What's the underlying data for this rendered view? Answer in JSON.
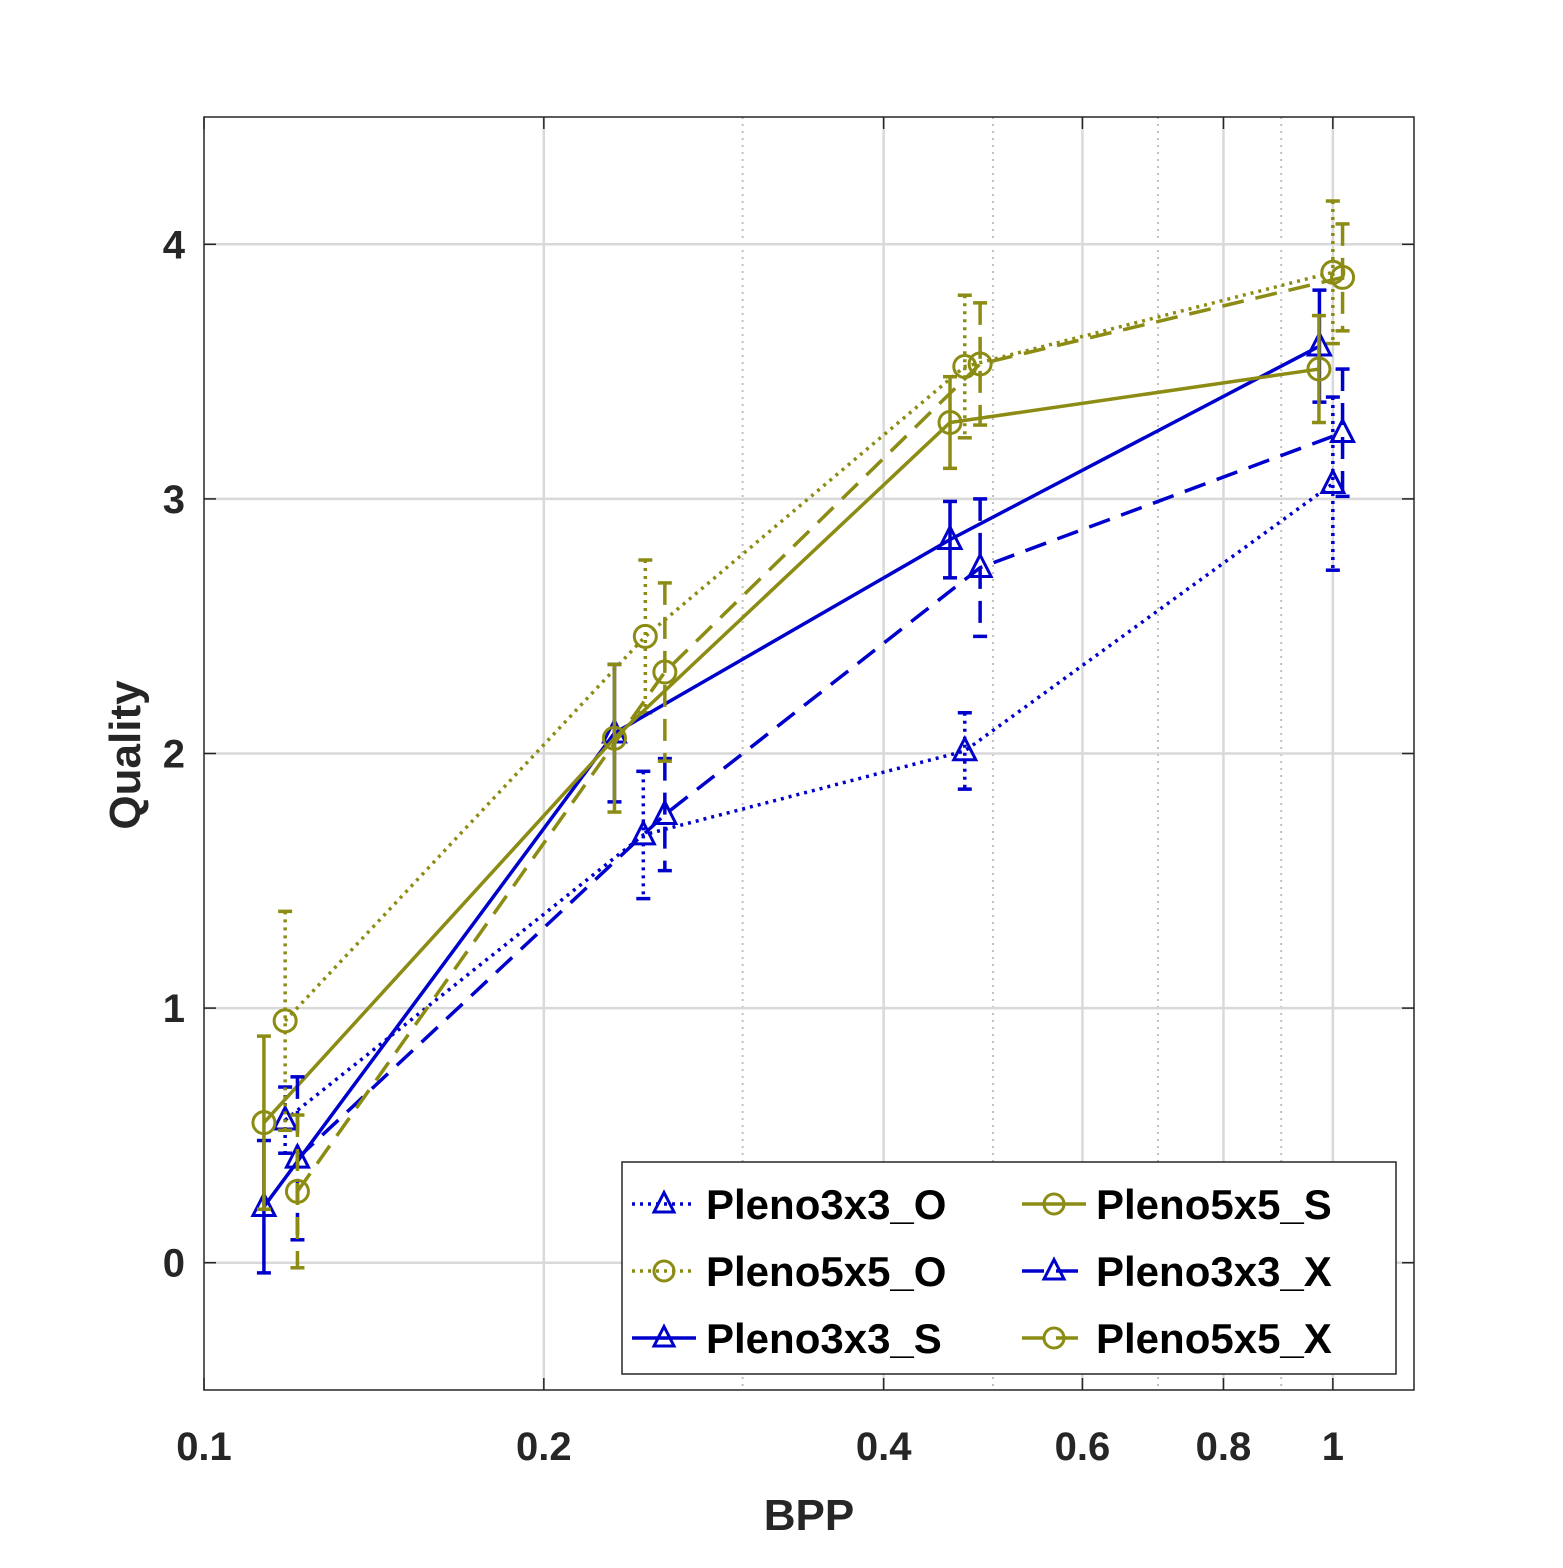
{
  "chart_data": {
    "type": "line",
    "title": "",
    "xlabel": "BPP",
    "ylabel": "Quality",
    "xscale": "log",
    "xlim": [
      0.1,
      1.18
    ],
    "ylim": [
      -0.5,
      4.5
    ],
    "xticks": [
      0.1,
      0.2,
      0.4,
      0.6,
      0.8,
      1
    ],
    "xtick_labels": [
      "0.1",
      "0.2",
      "0.4",
      "0.6",
      "0.8",
      "1"
    ],
    "yticks": [
      0,
      1,
      2,
      3,
      4
    ],
    "ytick_labels": [
      "0",
      "1",
      "2",
      "3",
      "4"
    ],
    "minor_xgrid": [
      0.3,
      0.5,
      0.7,
      0.9
    ],
    "grid": true,
    "legend_position": "bottom-right",
    "legend_columns": 2,
    "colors": {
      "blue": "#0000cc",
      "olive": "#8c8c14",
      "grid": "#d9d9d9",
      "axis": "#262626"
    },
    "series": [
      {
        "name": "Pleno3x3_O",
        "color": "#0000cc",
        "marker": "triangle",
        "line": "dotted",
        "x": [
          0.118,
          0.245,
          0.472,
          1.0
        ],
        "y": [
          0.56,
          1.68,
          2.01,
          3.06
        ],
        "err": [
          0.13,
          0.25,
          0.15,
          0.34
        ]
      },
      {
        "name": "Pleno5x5_O",
        "color": "#8c8c14",
        "marker": "circle",
        "line": "dotted",
        "x": [
          0.118,
          0.246,
          0.472,
          1.0
        ],
        "y": [
          0.95,
          2.46,
          3.52,
          3.89
        ],
        "err": [
          0.43,
          0.3,
          0.28,
          0.28
        ]
      },
      {
        "name": "Pleno3x3_S",
        "color": "#0000cc",
        "marker": "triangle",
        "line": "solid",
        "x": [
          0.113,
          0.231,
          0.458,
          0.973
        ],
        "y": [
          0.22,
          2.08,
          2.84,
          3.6
        ],
        "err": [
          0.26,
          0.27,
          0.15,
          0.22
        ]
      },
      {
        "name": "Pleno5x5_S",
        "color": "#8c8c14",
        "marker": "circle",
        "line": "solid",
        "x": [
          0.113,
          0.231,
          0.458,
          0.972
        ],
        "y": [
          0.55,
          2.06,
          3.3,
          3.51
        ],
        "err": [
          0.34,
          0.29,
          0.18,
          0.21
        ]
      },
      {
        "name": "Pleno3x3_X",
        "color": "#0000cc",
        "marker": "triangle",
        "line": "dashed",
        "x": [
          0.121,
          0.256,
          0.487,
          1.02
        ],
        "y": [
          0.41,
          1.76,
          2.73,
          3.26
        ],
        "err": [
          0.32,
          0.22,
          0.27,
          0.25
        ]
      },
      {
        "name": "Pleno5x5_X",
        "color": "#8c8c14",
        "marker": "circle",
        "line": "dashed",
        "x": [
          0.121,
          0.256,
          0.487,
          1.02
        ],
        "y": [
          0.28,
          2.32,
          3.53,
          3.87
        ],
        "err": [
          0.3,
          0.35,
          0.24,
          0.21
        ]
      }
    ],
    "legend_order": [
      "Pleno3x3_O",
      "Pleno5x5_S",
      "Pleno5x5_O",
      "Pleno3x3_X",
      "Pleno3x3_S",
      "Pleno5x5_X"
    ]
  }
}
